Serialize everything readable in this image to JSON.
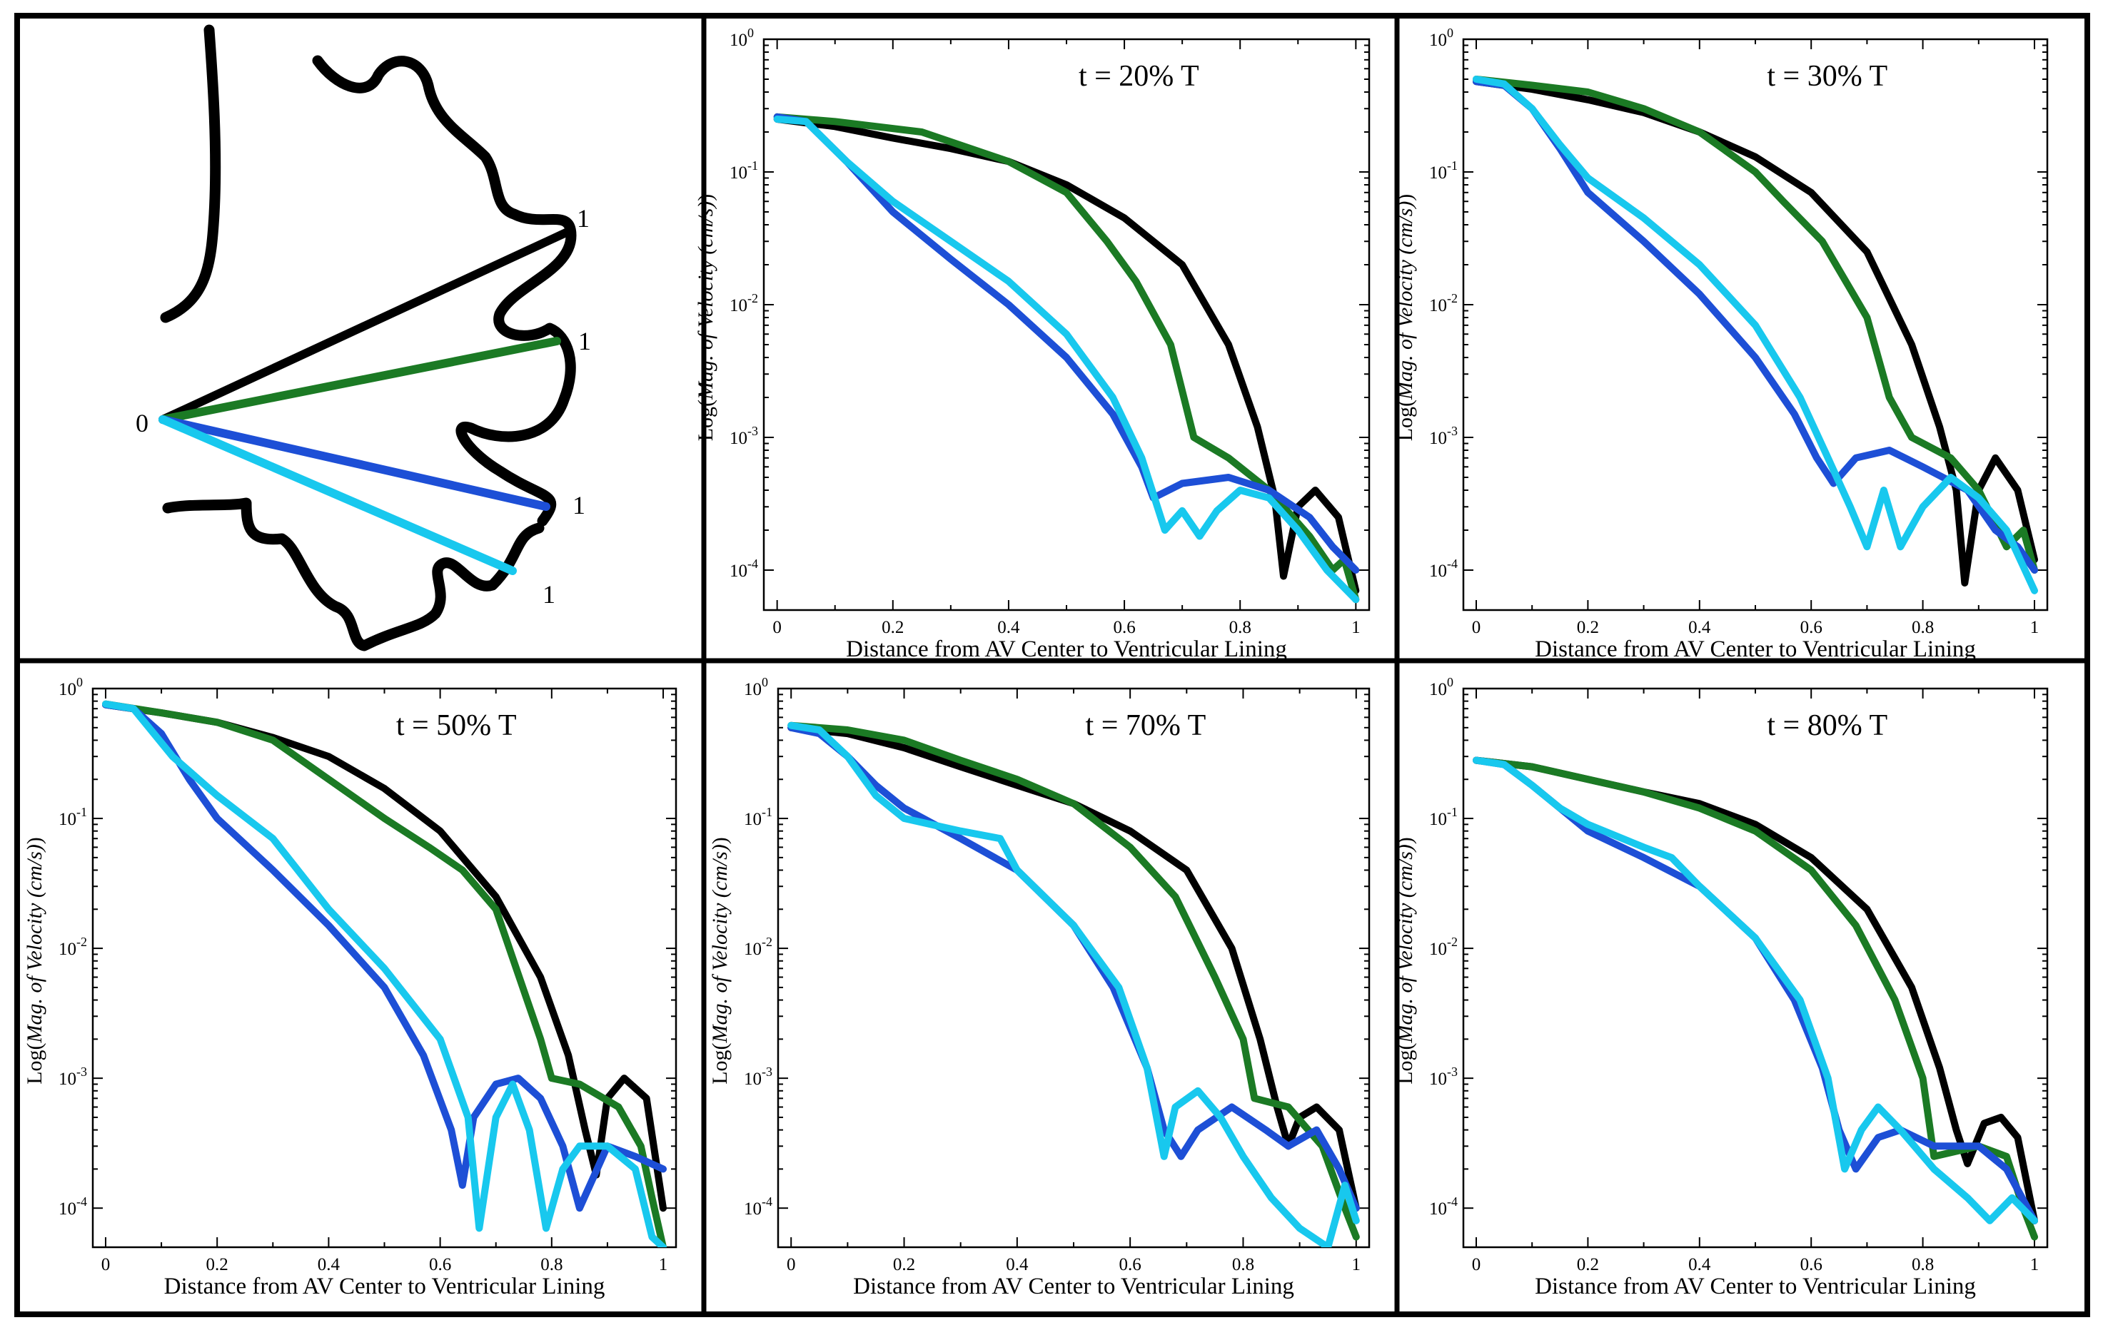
{
  "colors": {
    "black": "#000000",
    "green": "#1b7a24",
    "blue": "#1d4fd6",
    "cyan": "#18c8ee"
  },
  "schematic": {
    "origin_label": "0",
    "end_labels": [
      "1",
      "1",
      "1",
      "1"
    ]
  },
  "chart_data": [
    {
      "type": "line",
      "yscale": "log",
      "title": "t = 20% T",
      "xlabel": "Distance from AV Center to Ventricular Lining",
      "ylabel_prefix": "Log(",
      "ylabel_italic": "Mag. of Velocity (cm/s)",
      "ylabel_suffix": ")",
      "xlim": [
        0,
        1
      ],
      "ylim": [
        5e-05,
        1
      ],
      "xticks": [
        "0",
        "0.2",
        "0.4",
        "0.6",
        "0.8",
        "1"
      ],
      "yticks": [
        "10-4",
        "10-3",
        "10-2",
        "10-1",
        "100"
      ],
      "series": [
        {
          "name": "black",
          "color": "#000000",
          "x": [
            0,
            0.1,
            0.2,
            0.3,
            0.4,
            0.5,
            0.6,
            0.7,
            0.78,
            0.83,
            0.86,
            0.875,
            0.9,
            0.93,
            0.97,
            1.0
          ],
          "y": [
            0.25,
            0.22,
            0.18,
            0.15,
            0.12,
            0.08,
            0.045,
            0.02,
            0.005,
            0.0012,
            0.00035,
            9e-05,
            0.0003,
            0.0004,
            0.00025,
            7e-05
          ]
        },
        {
          "name": "green",
          "color": "#1b7a24",
          "x": [
            0,
            0.1,
            0.25,
            0.4,
            0.5,
            0.57,
            0.62,
            0.68,
            0.72,
            0.78,
            0.85,
            0.92,
            0.96,
            0.98,
            1.0
          ],
          "y": [
            0.26,
            0.24,
            0.2,
            0.12,
            0.07,
            0.03,
            0.015,
            0.005,
            0.001,
            0.0007,
            0.0004,
            0.00018,
            0.0001,
            0.00012,
            6e-05
          ]
        },
        {
          "name": "blue",
          "color": "#1d4fd6",
          "x": [
            0,
            0.05,
            0.12,
            0.2,
            0.3,
            0.4,
            0.5,
            0.58,
            0.63,
            0.65,
            0.7,
            0.78,
            0.85,
            0.92,
            0.96,
            1.0
          ],
          "y": [
            0.26,
            0.24,
            0.12,
            0.05,
            0.022,
            0.01,
            0.004,
            0.0015,
            0.0006,
            0.00035,
            0.00045,
            0.0005,
            0.0004,
            0.00025,
            0.00015,
            0.0001
          ]
        },
        {
          "name": "cyan",
          "color": "#18c8ee",
          "x": [
            0,
            0.05,
            0.12,
            0.2,
            0.3,
            0.4,
            0.5,
            0.58,
            0.63,
            0.67,
            0.7,
            0.73,
            0.76,
            0.8,
            0.85,
            0.9,
            0.95,
            1.0
          ],
          "y": [
            0.25,
            0.24,
            0.12,
            0.06,
            0.03,
            0.015,
            0.006,
            0.002,
            0.0007,
            0.0002,
            0.00028,
            0.00018,
            0.00028,
            0.0004,
            0.00035,
            0.0002,
            0.0001,
            6e-05
          ]
        }
      ]
    },
    {
      "type": "line",
      "yscale": "log",
      "title": "t = 30% T",
      "xlabel": "Distance from AV Center to Ventricular Lining",
      "ylabel_prefix": "Log(",
      "ylabel_italic": "Mag. of Velocity (cm/s)",
      "ylabel_suffix": ")",
      "xlim": [
        0,
        1
      ],
      "ylim": [
        5e-05,
        1
      ],
      "xticks": [
        "0",
        "0.2",
        "0.4",
        "0.6",
        "0.8",
        "1"
      ],
      "yticks": [
        "10-4",
        "10-3",
        "10-2",
        "10-1",
        "100"
      ],
      "series": [
        {
          "name": "black",
          "color": "#000000",
          "x": [
            0,
            0.1,
            0.2,
            0.3,
            0.4,
            0.5,
            0.6,
            0.7,
            0.78,
            0.83,
            0.86,
            0.875,
            0.9,
            0.93,
            0.97,
            1.0
          ],
          "y": [
            0.48,
            0.42,
            0.35,
            0.28,
            0.2,
            0.13,
            0.07,
            0.025,
            0.005,
            0.0012,
            0.0004,
            8e-05,
            0.0004,
            0.0007,
            0.0004,
            0.00012
          ]
        },
        {
          "name": "green",
          "color": "#1b7a24",
          "x": [
            0,
            0.1,
            0.2,
            0.3,
            0.4,
            0.5,
            0.55,
            0.62,
            0.7,
            0.74,
            0.78,
            0.85,
            0.9,
            0.95,
            0.98,
            1.0
          ],
          "y": [
            0.5,
            0.45,
            0.4,
            0.3,
            0.2,
            0.1,
            0.06,
            0.03,
            0.008,
            0.002,
            0.001,
            0.0007,
            0.0004,
            0.00015,
            0.0002,
            0.0001
          ]
        },
        {
          "name": "blue",
          "color": "#1d4fd6",
          "x": [
            0,
            0.05,
            0.1,
            0.15,
            0.2,
            0.3,
            0.4,
            0.5,
            0.57,
            0.61,
            0.64,
            0.68,
            0.74,
            0.8,
            0.88,
            0.93,
            0.97,
            1.0
          ],
          "y": [
            0.48,
            0.45,
            0.3,
            0.15,
            0.07,
            0.03,
            0.012,
            0.004,
            0.0015,
            0.0007,
            0.00045,
            0.0007,
            0.0008,
            0.0006,
            0.0004,
            0.0002,
            0.00015,
            0.0001
          ]
        },
        {
          "name": "cyan",
          "color": "#18c8ee",
          "x": [
            0,
            0.05,
            0.1,
            0.15,
            0.2,
            0.3,
            0.4,
            0.5,
            0.58,
            0.63,
            0.67,
            0.7,
            0.73,
            0.76,
            0.8,
            0.85,
            0.9,
            0.95,
            1.0
          ],
          "y": [
            0.5,
            0.46,
            0.3,
            0.16,
            0.09,
            0.045,
            0.02,
            0.007,
            0.002,
            0.0007,
            0.0003,
            0.00015,
            0.0004,
            0.00015,
            0.0003,
            0.0005,
            0.00035,
            0.0002,
            7e-05
          ]
        }
      ]
    },
    {
      "type": "line",
      "yscale": "log",
      "title": "t = 50% T",
      "xlabel": "Distance from AV Center to Ventricular Lining",
      "ylabel_prefix": "Log(",
      "ylabel_italic": "Mag. of Velocity (cm/s)",
      "ylabel_suffix": ")",
      "xlim": [
        0,
        1
      ],
      "ylim": [
        5e-05,
        1
      ],
      "xticks": [
        "0",
        "0.2",
        "0.4",
        "0.6",
        "0.8",
        "1"
      ],
      "yticks": [
        "10-4",
        "10-3",
        "10-2",
        "10-1",
        "100"
      ],
      "series": [
        {
          "name": "black",
          "color": "#000000",
          "x": [
            0,
            0.1,
            0.2,
            0.3,
            0.4,
            0.5,
            0.6,
            0.7,
            0.78,
            0.83,
            0.86,
            0.88,
            0.9,
            0.93,
            0.97,
            1.0
          ],
          "y": [
            0.75,
            0.65,
            0.55,
            0.42,
            0.3,
            0.17,
            0.08,
            0.025,
            0.006,
            0.0015,
            0.0004,
            0.00018,
            0.0007,
            0.001,
            0.0007,
            0.0001
          ]
        },
        {
          "name": "green",
          "color": "#1b7a24",
          "x": [
            0,
            0.1,
            0.2,
            0.3,
            0.4,
            0.5,
            0.58,
            0.64,
            0.7,
            0.78,
            0.8,
            0.85,
            0.92,
            0.96,
            0.98,
            1.0
          ],
          "y": [
            0.76,
            0.65,
            0.55,
            0.4,
            0.2,
            0.1,
            0.06,
            0.04,
            0.02,
            0.002,
            0.001,
            0.0009,
            0.0006,
            0.0003,
            0.00012,
            5e-05
          ]
        },
        {
          "name": "blue",
          "color": "#1d4fd6",
          "x": [
            0,
            0.05,
            0.1,
            0.15,
            0.2,
            0.3,
            0.4,
            0.5,
            0.57,
            0.62,
            0.64,
            0.66,
            0.7,
            0.74,
            0.78,
            0.82,
            0.85,
            0.9,
            0.95,
            1.0
          ],
          "y": [
            0.75,
            0.7,
            0.45,
            0.2,
            0.1,
            0.04,
            0.015,
            0.005,
            0.0015,
            0.0004,
            0.00015,
            0.0005,
            0.0009,
            0.001,
            0.0007,
            0.0003,
            0.0001,
            0.0003,
            0.00025,
            0.0002
          ]
        },
        {
          "name": "cyan",
          "color": "#18c8ee",
          "x": [
            0,
            0.05,
            0.12,
            0.2,
            0.3,
            0.4,
            0.5,
            0.6,
            0.65,
            0.67,
            0.7,
            0.73,
            0.76,
            0.79,
            0.82,
            0.85,
            0.9,
            0.95,
            0.98,
            1.0
          ],
          "y": [
            0.76,
            0.7,
            0.3,
            0.15,
            0.07,
            0.02,
            0.007,
            0.002,
            0.0005,
            7e-05,
            0.0005,
            0.0009,
            0.0004,
            7e-05,
            0.0002,
            0.0003,
            0.0003,
            0.0002,
            6e-05,
            5e-05
          ]
        }
      ]
    },
    {
      "type": "line",
      "yscale": "log",
      "title": "t = 70% T",
      "xlabel": "Distance from AV Center to Ventricular Lining",
      "ylabel_prefix": "Log(",
      "ylabel_italic": "Mag. of Velocity (cm/s)",
      "ylabel_suffix": ")",
      "xlim": [
        0,
        1
      ],
      "ylim": [
        5e-05,
        1
      ],
      "xticks": [
        "0",
        "0.2",
        "0.4",
        "0.6",
        "0.8",
        "1"
      ],
      "yticks": [
        "10-4",
        "10-3",
        "10-2",
        "10-1",
        "100"
      ],
      "series": [
        {
          "name": "black",
          "color": "#000000",
          "x": [
            0,
            0.1,
            0.2,
            0.3,
            0.4,
            0.5,
            0.6,
            0.7,
            0.78,
            0.83,
            0.86,
            0.88,
            0.9,
            0.93,
            0.97,
            1.0
          ],
          "y": [
            0.5,
            0.45,
            0.35,
            0.25,
            0.18,
            0.13,
            0.08,
            0.04,
            0.01,
            0.002,
            0.0006,
            0.0003,
            0.0005,
            0.0006,
            0.0004,
            0.0001
          ]
        },
        {
          "name": "green",
          "color": "#1b7a24",
          "x": [
            0,
            0.1,
            0.2,
            0.3,
            0.4,
            0.5,
            0.6,
            0.68,
            0.75,
            0.8,
            0.82,
            0.88,
            0.94,
            0.98,
            1.0
          ],
          "y": [
            0.52,
            0.48,
            0.4,
            0.28,
            0.2,
            0.13,
            0.06,
            0.025,
            0.006,
            0.002,
            0.0007,
            0.0006,
            0.0003,
            0.0001,
            6e-05
          ]
        },
        {
          "name": "blue",
          "color": "#1d4fd6",
          "x": [
            0,
            0.05,
            0.1,
            0.15,
            0.2,
            0.3,
            0.4,
            0.5,
            0.57,
            0.63,
            0.66,
            0.69,
            0.72,
            0.78,
            0.84,
            0.88,
            0.93,
            0.97,
            1.0
          ],
          "y": [
            0.5,
            0.45,
            0.3,
            0.18,
            0.12,
            0.07,
            0.04,
            0.015,
            0.005,
            0.0012,
            0.0004,
            0.00025,
            0.0004,
            0.0006,
            0.0004,
            0.0003,
            0.0004,
            0.0002,
            0.0001
          ]
        },
        {
          "name": "cyan",
          "color": "#18c8ee",
          "x": [
            0,
            0.05,
            0.1,
            0.15,
            0.2,
            0.3,
            0.37,
            0.4,
            0.5,
            0.58,
            0.63,
            0.66,
            0.68,
            0.72,
            0.76,
            0.8,
            0.85,
            0.9,
            0.95,
            0.98,
            1.0
          ],
          "y": [
            0.52,
            0.48,
            0.3,
            0.15,
            0.1,
            0.08,
            0.07,
            0.04,
            0.015,
            0.005,
            0.0012,
            0.00025,
            0.0006,
            0.0008,
            0.0005,
            0.00025,
            0.00012,
            7e-05,
            5e-05,
            0.00015,
            8e-05
          ]
        }
      ]
    },
    {
      "type": "line",
      "yscale": "log",
      "title": "t = 80% T",
      "xlabel": "Distance from AV Center to Ventricular Lining",
      "ylabel_prefix": "Log(",
      "ylabel_italic": "Mag. of Velocity (cm/s)",
      "ylabel_suffix": ")",
      "xlim": [
        0,
        1
      ],
      "ylim": [
        5e-05,
        1
      ],
      "xticks": [
        "0",
        "0.2",
        "0.4",
        "0.6",
        "0.8",
        "1"
      ],
      "yticks": [
        "10-4",
        "10-3",
        "10-2",
        "10-1",
        "100"
      ],
      "series": [
        {
          "name": "black",
          "color": "#000000",
          "x": [
            0,
            0.1,
            0.2,
            0.3,
            0.4,
            0.5,
            0.6,
            0.7,
            0.78,
            0.83,
            0.86,
            0.88,
            0.91,
            0.94,
            0.97,
            1.0
          ],
          "y": [
            0.28,
            0.25,
            0.2,
            0.16,
            0.13,
            0.09,
            0.05,
            0.02,
            0.005,
            0.0012,
            0.0004,
            0.00022,
            0.00045,
            0.0005,
            0.00035,
            8e-05
          ]
        },
        {
          "name": "green",
          "color": "#1b7a24",
          "x": [
            0,
            0.1,
            0.2,
            0.3,
            0.4,
            0.5,
            0.6,
            0.68,
            0.75,
            0.8,
            0.82,
            0.9,
            0.95,
            0.98,
            1.0
          ],
          "y": [
            0.28,
            0.25,
            0.2,
            0.16,
            0.12,
            0.08,
            0.04,
            0.015,
            0.004,
            0.001,
            0.00025,
            0.0003,
            0.00025,
            0.0001,
            6e-05
          ]
        },
        {
          "name": "blue",
          "color": "#1d4fd6",
          "x": [
            0,
            0.05,
            0.1,
            0.15,
            0.2,
            0.3,
            0.4,
            0.5,
            0.57,
            0.62,
            0.65,
            0.68,
            0.72,
            0.76,
            0.82,
            0.86,
            0.9,
            0.95,
            1.0
          ],
          "y": [
            0.28,
            0.26,
            0.18,
            0.12,
            0.08,
            0.05,
            0.03,
            0.012,
            0.004,
            0.0012,
            0.0004,
            0.0002,
            0.00035,
            0.0004,
            0.0003,
            0.0003,
            0.0003,
            0.0002,
            8e-05
          ]
        },
        {
          "name": "cyan",
          "color": "#18c8ee",
          "x": [
            0,
            0.05,
            0.1,
            0.15,
            0.2,
            0.3,
            0.35,
            0.4,
            0.5,
            0.58,
            0.63,
            0.66,
            0.69,
            0.72,
            0.76,
            0.82,
            0.88,
            0.92,
            0.96,
            1.0
          ],
          "y": [
            0.28,
            0.26,
            0.18,
            0.12,
            0.09,
            0.06,
            0.05,
            0.03,
            0.012,
            0.004,
            0.001,
            0.0002,
            0.0004,
            0.0006,
            0.0004,
            0.0002,
            0.00012,
            8e-05,
            0.00012,
            8e-05
          ]
        }
      ]
    }
  ]
}
